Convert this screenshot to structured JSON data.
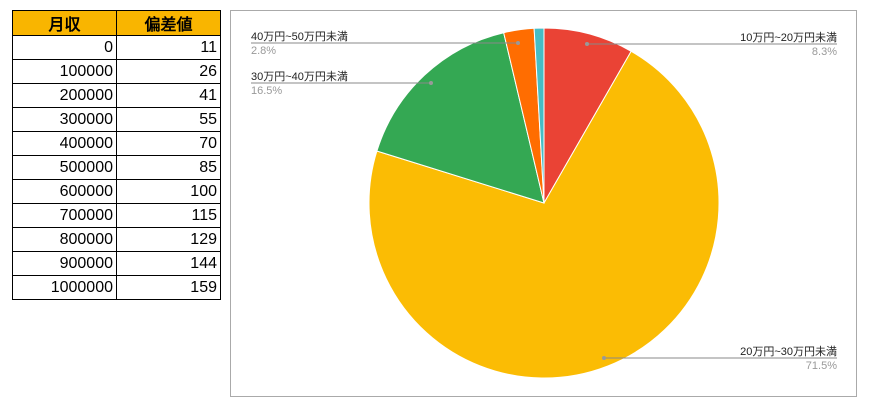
{
  "table": {
    "headers": [
      "月収",
      "偏差値"
    ],
    "rows": [
      [
        "0",
        "11"
      ],
      [
        "100000",
        "26"
      ],
      [
        "200000",
        "41"
      ],
      [
        "300000",
        "55"
      ],
      [
        "400000",
        "70"
      ],
      [
        "500000",
        "85"
      ],
      [
        "600000",
        "100"
      ],
      [
        "700000",
        "115"
      ],
      [
        "800000",
        "129"
      ],
      [
        "900000",
        "144"
      ],
      [
        "1000000",
        "159"
      ]
    ]
  },
  "chart_data": {
    "type": "pie",
    "slices": [
      {
        "label": "10万円~20万円未満",
        "value": 8.3,
        "pct_label": "8.3%",
        "color": "#ea4335"
      },
      {
        "label": "20万円~30万円未満",
        "value": 71.5,
        "pct_label": "71.5%",
        "color": "#fbbc04"
      },
      {
        "label": "30万円~40万円未満",
        "value": 16.5,
        "pct_label": "16.5%",
        "color": "#34a853"
      },
      {
        "label": "40万円~50万円未満",
        "value": 2.8,
        "pct_label": "2.8%",
        "color": "#ff6d01"
      },
      {
        "value": 0.9,
        "color": "#46bdc6"
      }
    ],
    "legend": "none"
  }
}
